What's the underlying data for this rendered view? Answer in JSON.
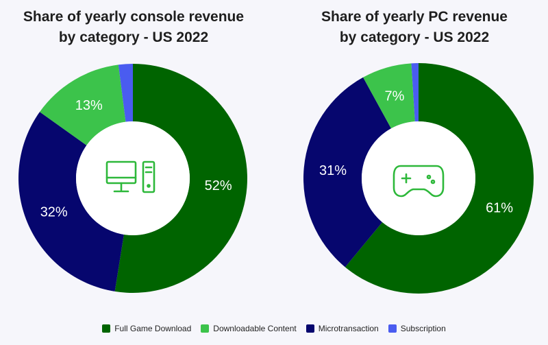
{
  "colors": {
    "full_game_download": "#006400",
    "downloadable_content": "#3cc34b",
    "microtransaction": "#06066e",
    "subscription": "#4a5cf0",
    "label_text": "#ffffff",
    "icon": "#2db83a"
  },
  "legend": [
    {
      "label": "Full Game Download",
      "color": "#006400"
    },
    {
      "label": "Downloadable Content",
      "color": "#3cc34b"
    },
    {
      "label": "Microtransaction",
      "color": "#06066e"
    },
    {
      "label": "Subscription",
      "color": "#4a5cf0"
    }
  ],
  "chart_data": [
    {
      "type": "pie",
      "title_line1": "Share of yearly console revenue",
      "title_line2": "by category - US 2022",
      "center_icon": "desktop-computer-icon",
      "categories": [
        "Full Game Download",
        "Microtransaction",
        "Downloadable Content",
        "Subscription"
      ],
      "values": [
        52,
        32,
        13,
        2
      ],
      "labels": [
        "52%",
        "32%",
        "13%",
        ""
      ]
    },
    {
      "type": "pie",
      "title_line1": "Share of yearly PC revenue",
      "title_line2": "by category - US 2022",
      "center_icon": "gamepad-icon",
      "categories": [
        "Full Game Download",
        "Microtransaction",
        "Downloadable Content",
        "Subscription"
      ],
      "values": [
        61,
        31,
        7,
        1
      ],
      "labels": [
        "61%",
        "31%",
        "7%",
        ""
      ]
    }
  ]
}
